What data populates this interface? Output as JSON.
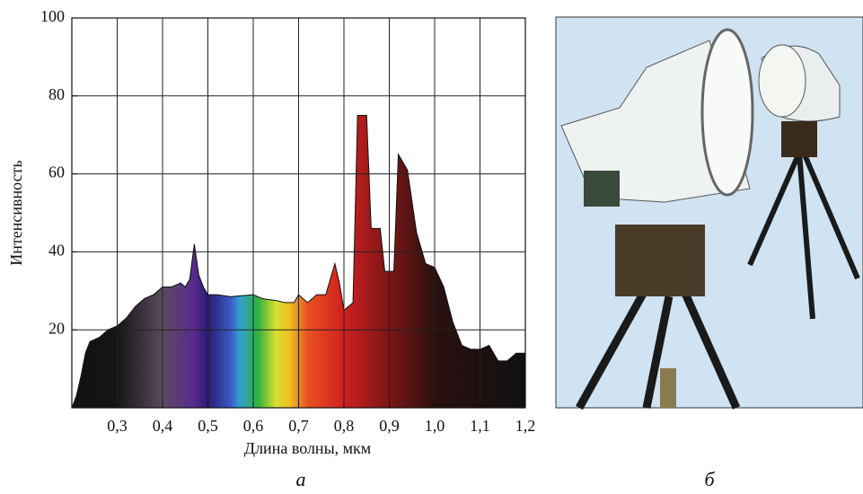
{
  "chart_data": {
    "type": "area",
    "x_label": "Длина волны, мкм",
    "y_label": "Интенсивность",
    "x": [
      0.2,
      0.21,
      0.22,
      0.23,
      0.24,
      0.26,
      0.28,
      0.3,
      0.32,
      0.34,
      0.36,
      0.38,
      0.4,
      0.42,
      0.44,
      0.45,
      0.46,
      0.47,
      0.48,
      0.49,
      0.5,
      0.52,
      0.55,
      0.6,
      0.62,
      0.65,
      0.67,
      0.69,
      0.7,
      0.72,
      0.74,
      0.76,
      0.78,
      0.79,
      0.8,
      0.82,
      0.83,
      0.85,
      0.86,
      0.88,
      0.89,
      0.91,
      0.92,
      0.94,
      0.96,
      0.98,
      1.0,
      1.02,
      1.04,
      1.06,
      1.08,
      1.1,
      1.12,
      1.14,
      1.16,
      1.18,
      1.2
    ],
    "values": [
      0,
      3,
      8,
      14,
      17,
      18,
      20,
      21,
      23,
      26,
      28,
      29,
      31,
      31,
      32,
      31,
      33,
      42,
      34,
      31,
      29,
      29,
      28.5,
      29,
      28,
      27.5,
      27,
      27,
      29,
      27,
      29,
      29,
      37,
      32,
      25,
      27,
      75,
      75,
      46,
      46,
      35,
      35,
      65,
      61,
      45,
      37,
      36,
      31,
      22,
      16,
      15,
      15,
      16,
      12,
      12,
      14,
      14
    ],
    "xlim": [
      0.2,
      1.2
    ],
    "ylim": [
      0,
      100
    ],
    "xticks": [
      {
        "value": 0.3,
        "label": "0,3"
      },
      {
        "value": 0.4,
        "label": "0,4"
      },
      {
        "value": 0.5,
        "label": "0,5"
      },
      {
        "value": 0.6,
        "label": "0,6"
      },
      {
        "value": 0.7,
        "label": "0,7"
      },
      {
        "value": 0.8,
        "label": "0,8"
      },
      {
        "value": 0.9,
        "label": "0,9"
      },
      {
        "value": 1.0,
        "label": "1,0"
      },
      {
        "value": 1.1,
        "label": "1,1"
      },
      {
        "value": 1.2,
        "label": "1,2"
      }
    ],
    "yticks": [
      20,
      40,
      60,
      80,
      100
    ],
    "grid": true
  },
  "captions": {
    "left": "а",
    "right": "б"
  }
}
